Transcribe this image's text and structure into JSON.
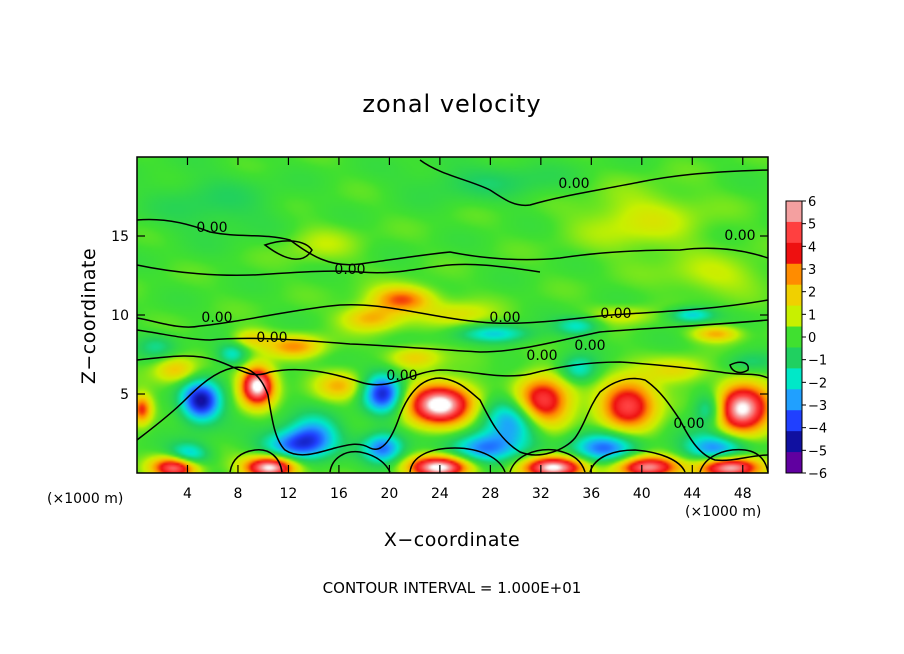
{
  "chart_data": {
    "type": "heatmap",
    "title": "zonal velocity",
    "xlabel": "X−coordinate",
    "ylabel": "Z−coordinate",
    "x_unit_left": "(×1000 m)",
    "x_unit_right": "(×1000 m)",
    "footer": "CONTOUR INTERVAL = 1.000E+01",
    "xlim": [
      0,
      50
    ],
    "ylim": [
      0,
      20
    ],
    "x_ticks": [
      "4",
      "8",
      "12",
      "16",
      "20",
      "24",
      "28",
      "32",
      "36",
      "40",
      "44",
      "48"
    ],
    "y_ticks": [
      "5",
      "10",
      "15"
    ],
    "colorbar_ticks": [
      "6",
      "5",
      "4",
      "3",
      "2",
      "1",
      "0",
      "−1",
      "−2",
      "−3",
      "−4",
      "−5",
      "−6"
    ],
    "colorbar_colors": [
      "#f4a0a0",
      "#ff4040",
      "#ee1010",
      "#ff8c00",
      "#f0d000",
      "#c8f000",
      "#40e030",
      "#20d060",
      "#00e8c8",
      "#20a0ff",
      "#2040ff",
      "#1010a0",
      "#6000a0"
    ],
    "contour_labels": [
      "0.00",
      "0.00",
      "0.00",
      "0.00",
      "0.00",
      "0.00",
      "0.00",
      "0.00",
      "0.00",
      "0.00",
      "0.00",
      "0.00"
    ],
    "features": [
      {
        "x": 9.5,
        "z": 5.5,
        "v": 7,
        "sx": 1.3,
        "sz": 1.2
      },
      {
        "x": 5.0,
        "z": 4.5,
        "v": -5,
        "sx": 1.6,
        "sz": 1.3
      },
      {
        "x": 19.5,
        "z": 5.0,
        "v": -4.5,
        "sx": 1.6,
        "sz": 1.3
      },
      {
        "x": 24.0,
        "z": 4.3,
        "v": 7,
        "sx": 2.6,
        "sz": 1.3
      },
      {
        "x": 32.0,
        "z": 4.3,
        "v": 7,
        "sx": 2.2,
        "sz": 1.6
      },
      {
        "x": 30.5,
        "z": 3.5,
        "v": -4.5,
        "sx": 2.6,
        "sz": 1.6
      },
      {
        "x": 39.0,
        "z": 4.3,
        "v": 5,
        "sx": 2.2,
        "sz": 1.6
      },
      {
        "x": 48.0,
        "z": 4.0,
        "v": 7,
        "sx": 2.2,
        "sz": 1.5
      },
      {
        "x": 45.5,
        "z": 4.0,
        "v": -3,
        "sx": 1.3,
        "sz": 1.1
      },
      {
        "x": 12.5,
        "z": 1.7,
        "v": -3.5,
        "sx": 2.6,
        "sz": 1.0
      },
      {
        "x": 14.0,
        "z": 2.5,
        "v": -2.5,
        "sx": 2.0,
        "sz": 1.2
      },
      {
        "x": 27.5,
        "z": 1.5,
        "v": -3.5,
        "sx": 2.6,
        "sz": 1.0
      },
      {
        "x": 37.0,
        "z": 1.5,
        "v": -3.5,
        "sx": 2.6,
        "sz": 1.0
      },
      {
        "x": 46.0,
        "z": 1.5,
        "v": -3.5,
        "sx": 2.6,
        "sz": 1.0
      },
      {
        "x": 4.0,
        "z": 1.0,
        "v": -3,
        "sx": 1.6,
        "sz": 0.8
      },
      {
        "x": 19.5,
        "z": 1.5,
        "v": -3.5,
        "sx": 1.6,
        "sz": 1.0
      },
      {
        "x": 3.0,
        "z": 0.3,
        "v": 6,
        "sx": 1.8,
        "sz": 0.7
      },
      {
        "x": 10.5,
        "z": 0.3,
        "v": 7,
        "sx": 2.0,
        "sz": 0.7
      },
      {
        "x": 24.0,
        "z": 0.3,
        "v": 7,
        "sx": 2.4,
        "sz": 0.7
      },
      {
        "x": 33.0,
        "z": 0.3,
        "v": 7,
        "sx": 2.4,
        "sz": 0.7
      },
      {
        "x": 40.5,
        "z": 0.3,
        "v": 6,
        "sx": 2.4,
        "sz": 0.7
      },
      {
        "x": 47.0,
        "z": 0.3,
        "v": 7,
        "sx": 2.4,
        "sz": 0.7
      },
      {
        "x": 0.3,
        "z": 4.0,
        "v": 4,
        "sx": 0.8,
        "sz": 0.9
      },
      {
        "x": 21.0,
        "z": 11.0,
        "v": 3.5,
        "sx": 2.4,
        "sz": 0.8
      },
      {
        "x": 18.5,
        "z": 9.8,
        "v": 2.5,
        "sx": 2.2,
        "sz": 0.8
      },
      {
        "x": 12.5,
        "z": 8.0,
        "v": 2.8,
        "sx": 2.2,
        "sz": 0.7
      },
      {
        "x": 25.5,
        "z": 10.0,
        "v": 1.5,
        "sx": 2.8,
        "sz": 0.8
      },
      {
        "x": 28.5,
        "z": 8.8,
        "v": -2.2,
        "sx": 3.0,
        "sz": 0.6
      },
      {
        "x": 35.0,
        "z": 9.3,
        "v": -2,
        "sx": 1.8,
        "sz": 0.6
      },
      {
        "x": 44.0,
        "z": 10.0,
        "v": -2.5,
        "sx": 1.8,
        "sz": 0.5
      },
      {
        "x": 46.0,
        "z": 8.8,
        "v": 2.5,
        "sx": 1.8,
        "sz": 0.5
      },
      {
        "x": 38.5,
        "z": 10.0,
        "v": 1.3,
        "sx": 2.5,
        "sz": 0.6
      },
      {
        "x": 7.5,
        "z": 7.5,
        "v": -2,
        "sx": 1.2,
        "sz": 0.7
      },
      {
        "x": 9.0,
        "z": 8.5,
        "v": 1.8,
        "sx": 1.5,
        "sz": 0.6
      },
      {
        "x": 3.0,
        "z": 6.5,
        "v": 2.2,
        "sx": 1.6,
        "sz": 0.8
      },
      {
        "x": 1.5,
        "z": 8.0,
        "v": -1.2,
        "sx": 1.6,
        "sz": 0.8
      },
      {
        "x": 16.0,
        "z": 5.5,
        "v": 2.3,
        "sx": 1.8,
        "sz": 0.9
      },
      {
        "x": 22.0,
        "z": 7.3,
        "v": 2,
        "sx": 2.0,
        "sz": 0.7
      },
      {
        "x": 35.0,
        "z": 6.5,
        "v": -2.2,
        "sx": 1.5,
        "sz": 0.9
      },
      {
        "x": 43.0,
        "z": 6.5,
        "v": 1.6,
        "sx": 2.5,
        "sz": 0.8
      },
      {
        "x": 48.5,
        "z": 7.0,
        "v": -1.2,
        "sx": 2.0,
        "sz": 0.7
      },
      {
        "x": 40.0,
        "z": 16.0,
        "v": 1.2,
        "sx": 5.0,
        "sz": 2.0
      },
      {
        "x": 46.0,
        "z": 12.5,
        "v": 1.0,
        "sx": 4.0,
        "sz": 1.2
      },
      {
        "x": 6.0,
        "z": 17.0,
        "v": -0.8,
        "sx": 5.0,
        "sz": 2.0
      },
      {
        "x": 28.0,
        "z": 18.5,
        "v": -0.9,
        "sx": 6.0,
        "sz": 1.2
      },
      {
        "x": 14.5,
        "z": 14.5,
        "v": 0.8,
        "sx": 3.0,
        "sz": 1.2
      }
    ]
  }
}
